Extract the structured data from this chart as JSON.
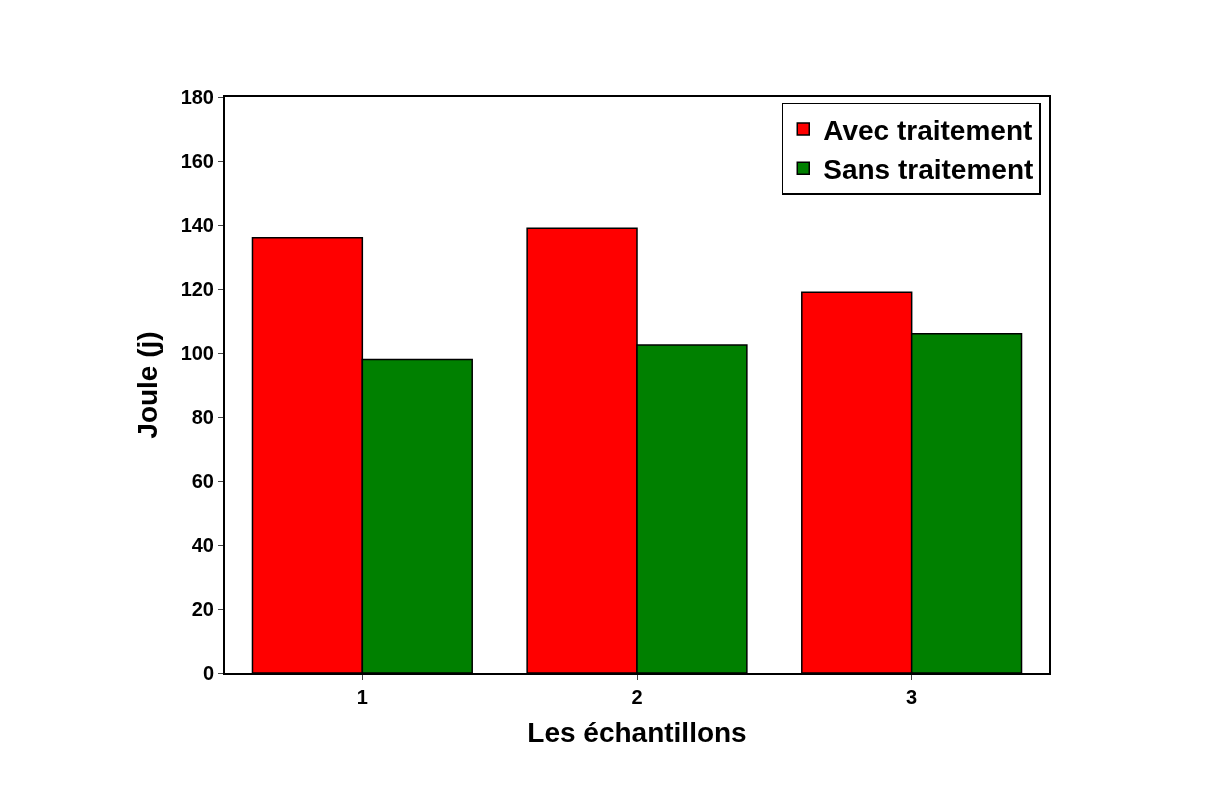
{
  "chart_data": {
    "type": "bar",
    "xlabel": "Les échantillons",
    "ylabel": "Joule (j)",
    "categories": [
      "1",
      "2",
      "3"
    ],
    "series": [
      {
        "name": "Avec traitement",
        "color": "#ff0000",
        "values": [
          136,
          139,
          119
        ]
      },
      {
        "name": "Sans traitement",
        "color": "#008000",
        "values": [
          98,
          102.5,
          106
        ]
      }
    ],
    "ylim": [
      0,
      180
    ],
    "yticks": [
      0,
      20,
      40,
      60,
      80,
      100,
      120,
      140,
      160,
      180
    ],
    "grid": false,
    "legend": "top right"
  }
}
